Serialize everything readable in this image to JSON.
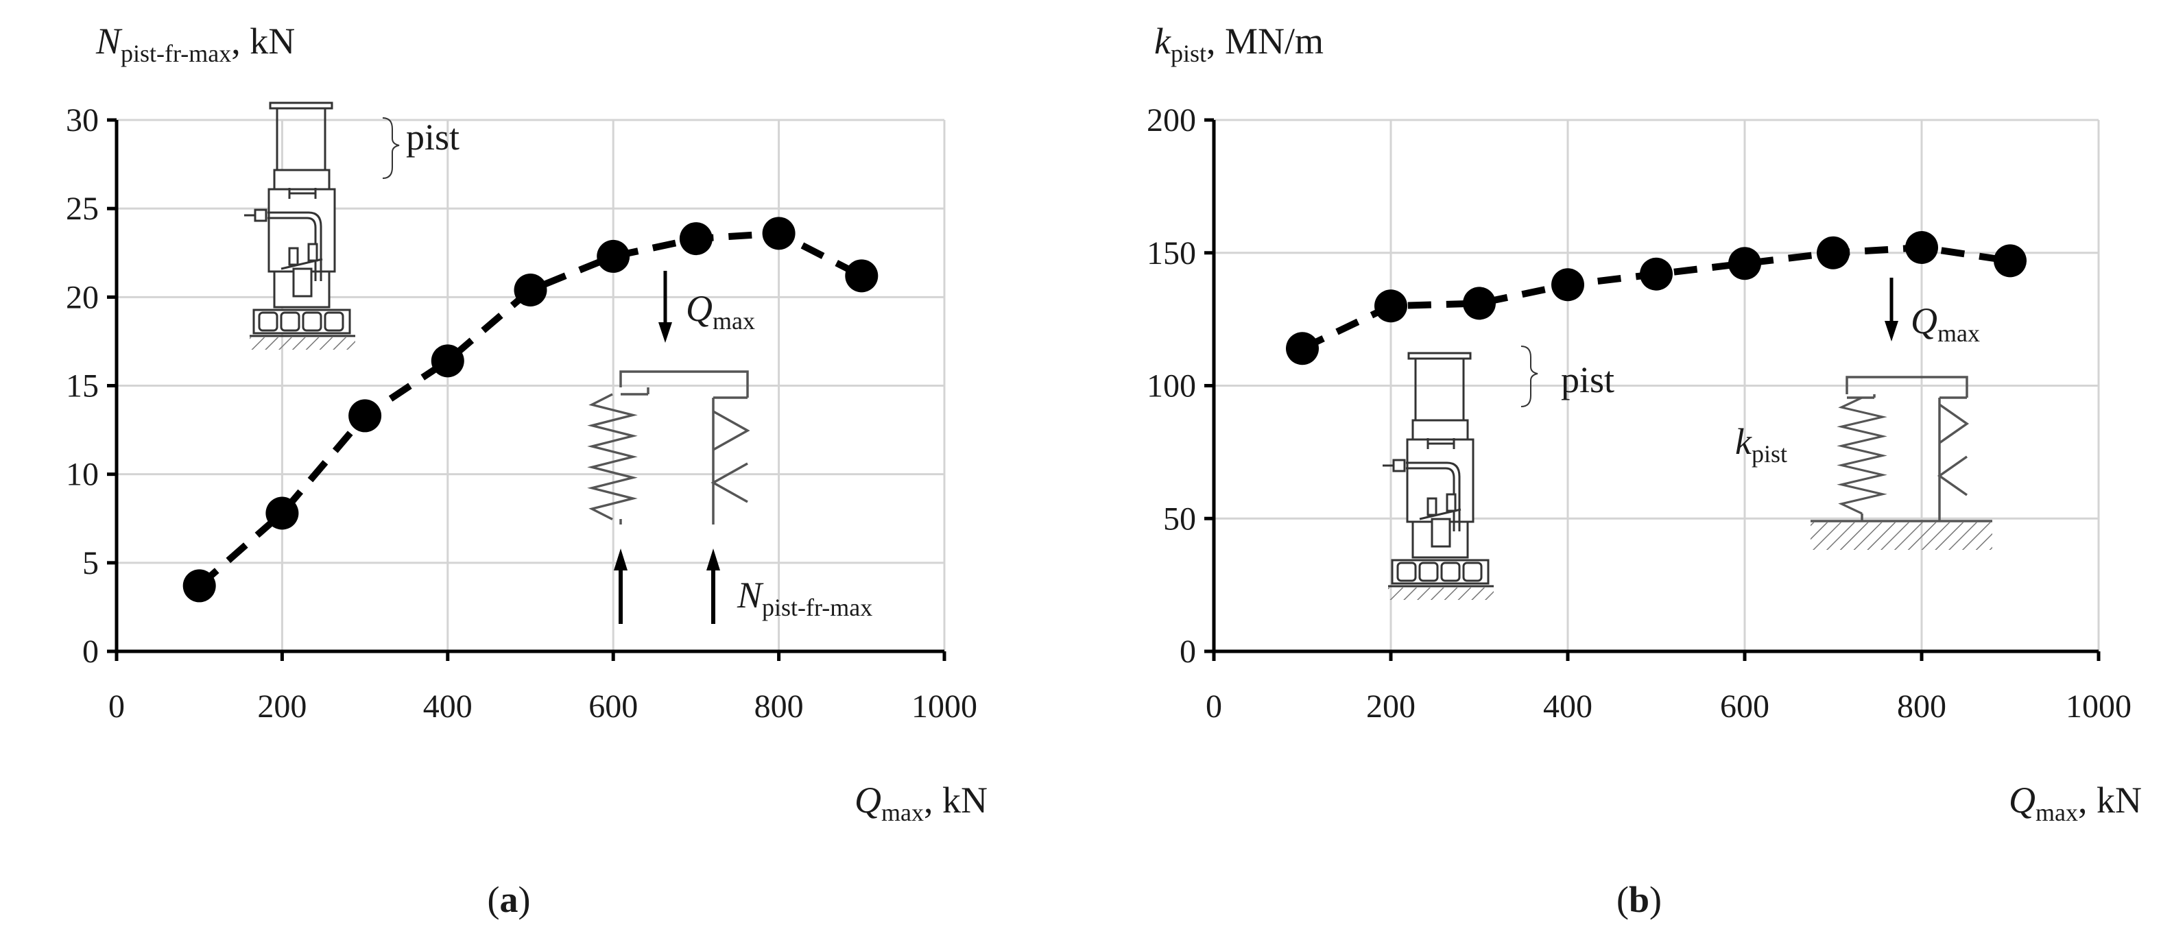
{
  "chart_data": [
    {
      "type": "scatter",
      "panel": "(a)",
      "title": "",
      "ylabel_main": "N",
      "ylabel_sub": "pist-fr-max",
      "ylabel_unit": ", kN",
      "xlabel_main": "Q",
      "xlabel_sub": "max",
      "xlabel_unit": ", kN",
      "xlim": [
        0,
        1000
      ],
      "ylim": [
        0,
        30
      ],
      "xticks": [
        0,
        200,
        400,
        600,
        800,
        1000
      ],
      "yticks": [
        0,
        5,
        10,
        15,
        20,
        25,
        30
      ],
      "x": [
        100,
        200,
        300,
        400,
        500,
        600,
        700,
        800,
        900
      ],
      "y": [
        3.7,
        7.8,
        13.3,
        16.4,
        20.4,
        22.3,
        23.3,
        23.6,
        21.2
      ],
      "annotations": {
        "pist": "pist",
        "load_main": "Q",
        "load_sub": "max",
        "force_main": "N",
        "force_sub": "pist-fr-max"
      }
    },
    {
      "type": "scatter",
      "panel": "(b)",
      "title": "",
      "ylabel_main": "k",
      "ylabel_sub": "pist",
      "ylabel_unit": ", MN/m",
      "xlabel_main": "Q",
      "xlabel_sub": "max",
      "xlabel_unit": ", kN",
      "xlim": [
        0,
        1000
      ],
      "ylim": [
        0,
        200
      ],
      "xticks": [
        0,
        200,
        400,
        600,
        800,
        1000
      ],
      "yticks": [
        0,
        50,
        100,
        150,
        200
      ],
      "x": [
        100,
        200,
        300,
        400,
        500,
        600,
        700,
        800,
        900
      ],
      "y": [
        114,
        130,
        131,
        138,
        142,
        146,
        150,
        152,
        147
      ],
      "annotations": {
        "pist": "pist",
        "load_main": "Q",
        "load_sub": "max",
        "stiff_main": "k",
        "stiff_sub": "pist"
      }
    }
  ]
}
